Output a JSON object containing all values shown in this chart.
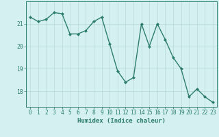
{
  "x": [
    0,
    1,
    2,
    3,
    4,
    5,
    6,
    7,
    8,
    9,
    10,
    11,
    12,
    13,
    14,
    15,
    16,
    17,
    18,
    19,
    20,
    21,
    22,
    23
  ],
  "y": [
    21.3,
    21.1,
    21.2,
    21.5,
    21.45,
    20.55,
    20.55,
    20.7,
    21.1,
    21.3,
    20.1,
    18.9,
    18.4,
    18.6,
    21.0,
    20.0,
    21.0,
    20.3,
    19.5,
    19.0,
    17.75,
    18.1,
    17.75,
    17.5
  ],
  "line_color": "#2d7d6e",
  "marker": "D",
  "marker_size": 2.0,
  "bg_color": "#d4f0f0",
  "grid_color": "#b8d8d8",
  "axis_color": "#2d7d6e",
  "xlabel": "Humidex (Indice chaleur)",
  "ylim": [
    17.3,
    22.0
  ],
  "yticks": [
    18,
    19,
    20,
    21
  ],
  "xticks": [
    0,
    1,
    2,
    3,
    4,
    5,
    6,
    7,
    8,
    9,
    10,
    11,
    12,
    13,
    14,
    15,
    16,
    17,
    18,
    19,
    20,
    21,
    22,
    23
  ],
  "xlabel_fontsize": 6.5,
  "tick_fontsize": 5.8,
  "line_width": 1.0
}
